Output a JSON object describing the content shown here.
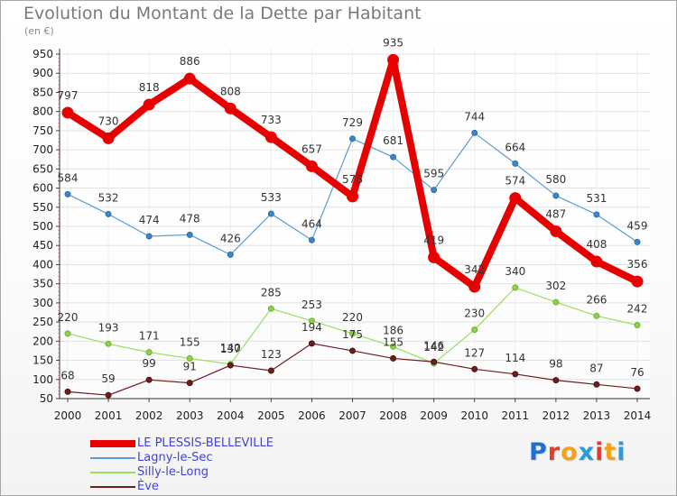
{
  "header": {
    "title": "Evolution du Montant de la Dette par Habitant",
    "unit": "(en €)"
  },
  "brand": {
    "letters": [
      "P",
      "r",
      "o",
      "x",
      "i",
      "t",
      "i"
    ],
    "colors": [
      "#1e6fd8",
      "#e63a2a",
      "#f3a21b",
      "#2e9bd8",
      "#e63a2a",
      "#f3a21b",
      "#2e9bd8"
    ]
  },
  "chart_data": {
    "type": "line",
    "title": "Evolution du Montant de la Dette par Habitant",
    "subtitle": "(en €)",
    "xlabel": "",
    "ylabel": "",
    "x": [
      2000,
      2001,
      2002,
      2003,
      2004,
      2005,
      2006,
      2007,
      2008,
      2009,
      2010,
      2011,
      2012,
      2013,
      2014
    ],
    "ylim": [
      50,
      950
    ],
    "yticks": [
      50,
      100,
      150,
      200,
      250,
      300,
      350,
      400,
      450,
      500,
      550,
      600,
      650,
      700,
      750,
      800,
      850,
      900,
      950
    ],
    "grid": true,
    "legend_position": "bottom-left",
    "series": [
      {
        "name": "LE PLESSIS-BELLEVILLE",
        "color": "#e60000",
        "values": [
          797,
          730,
          818,
          886,
          808,
          733,
          657,
          578,
          935,
          419,
          342,
          574,
          487,
          408,
          356
        ]
      },
      {
        "name": "Lagny-le-Sec",
        "color": "#5b9bd5",
        "values": [
          584,
          532,
          474,
          478,
          426,
          533,
          464,
          729,
          681,
          595,
          744,
          664,
          580,
          531,
          459
        ]
      },
      {
        "name": "Silly-le-Long",
        "color": "#99e05a",
        "values": [
          220,
          193,
          171,
          155,
          140,
          285,
          253,
          220,
          186,
          142,
          230,
          340,
          302,
          266,
          242
        ]
      },
      {
        "name": "Ève",
        "color": "#6b1f1f",
        "values": [
          68,
          59,
          99,
          91,
          137,
          123,
          194,
          175,
          155,
          146,
          127,
          114,
          98,
          87,
          76
        ]
      }
    ]
  }
}
